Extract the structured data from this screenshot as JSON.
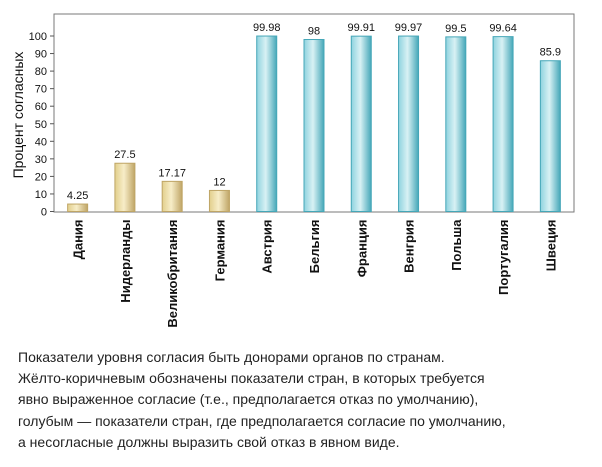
{
  "chart_data": {
    "type": "bar",
    "ylabel": "Процент согласных",
    "xlabel": "",
    "ylim": [
      0,
      100
    ],
    "yticks": [
      0,
      10,
      20,
      30,
      40,
      50,
      60,
      70,
      80,
      90,
      100
    ],
    "grid": false,
    "categories": [
      "Дания",
      "Нидерланды",
      "Великобритания",
      "Германия",
      "Австрия",
      "Бельгия",
      "Франция",
      "Венгрия",
      "Польша",
      "Португалия",
      "Швеция"
    ],
    "values": [
      4.25,
      27.5,
      17.17,
      12,
      99.98,
      98,
      99.91,
      99.97,
      99.5,
      99.64,
      85.9
    ],
    "data_labels": [
      "4.25",
      "27.5",
      "17.17",
      "12",
      "99.98",
      "98",
      "99.91",
      "99.97",
      "99.5",
      "99.64",
      "85.9"
    ],
    "groups": [
      "explicit",
      "explicit",
      "explicit",
      "explicit",
      "presumed",
      "presumed",
      "presumed",
      "presumed",
      "presumed",
      "presumed",
      "presumed"
    ],
    "colors": {
      "explicit_light": "#f7edc8",
      "explicit_mid": "#e2cf8c",
      "explicit_dark": "#bfa566",
      "presumed_light": "#d8f1f4",
      "presumed_mid": "#8fd3df",
      "presumed_dark": "#45a7b8"
    }
  },
  "caption": {
    "lines": [
      "Показатели уровня согласия быть донорами органов по странам.",
      "Жёлто-коричневым обозначены показатели стран, в которых требуется",
      "явно выраженное согласие (т.е., предполагается отказ по умолчанию),",
      "голубым — показатели стран, где предполагается согласие по умолчанию,",
      "а несогласные должны выразить свой отказ в явном виде."
    ]
  }
}
